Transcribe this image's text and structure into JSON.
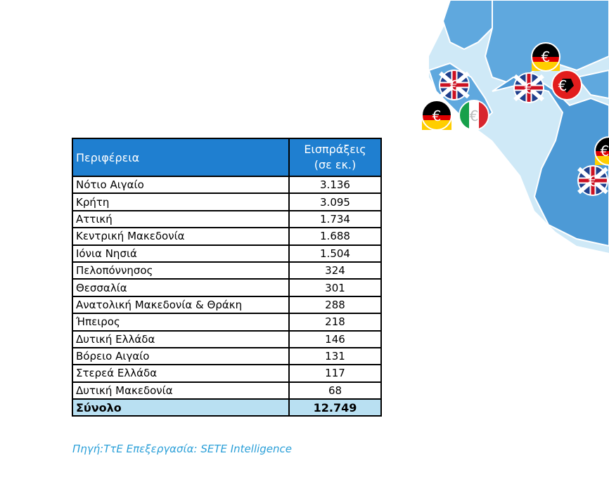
{
  "table": {
    "header": {
      "region": "Περιφέρεια",
      "value_line1": "Εισπράξεις",
      "value_line2": "(σε εκ.)"
    },
    "rows": [
      {
        "region": "Νότιο Αιγαίο",
        "value": "3.136"
      },
      {
        "region": "Κρήτη",
        "value": "3.095"
      },
      {
        "region": "Αττική",
        "value": "1.734"
      },
      {
        "region": "Κεντρική Μακεδονία",
        "value": "1.688"
      },
      {
        "region": "Ιόνια Νησιά",
        "value": "1.504"
      },
      {
        "region": "Πελοπόννησος",
        "value": "324"
      },
      {
        "region": "Θεσσαλία",
        "value": "301"
      },
      {
        "region": "Ανατολική Μακεδονία & Θράκη",
        "value": "288"
      },
      {
        "region": "Ήπειρος",
        "value": "218"
      },
      {
        "region": "Δυτική Ελλάδα",
        "value": "146"
      },
      {
        "region": "Βόρειο Αιγαίο",
        "value": "131"
      },
      {
        "region": "Στερεά Ελλάδα",
        "value": "117"
      },
      {
        "region": "Δυτική Μακεδονία",
        "value": "68"
      }
    ],
    "total": {
      "region": "Σύνολο",
      "value": "12.749"
    }
  },
  "source": "Πηγή:ΤτΕ Επεξεργασία: SETE Intelligence",
  "colors": {
    "header_bg": "#1f7fd0",
    "total_bg": "#b9e0f2",
    "source_text": "#2a9fd8",
    "sea": "#a9d6ef",
    "land": "#5fa8de"
  },
  "map_markers": [
    "germany-flag-euro-icon",
    "uk-flag-euro-icon",
    "uk-flag-euro-icon",
    "albania-flag-euro-icon",
    "germany-flag-euro-icon",
    "italy-flag-euro-icon",
    "germany-flag-euro-icon",
    "uk-flag-euro-icon"
  ]
}
